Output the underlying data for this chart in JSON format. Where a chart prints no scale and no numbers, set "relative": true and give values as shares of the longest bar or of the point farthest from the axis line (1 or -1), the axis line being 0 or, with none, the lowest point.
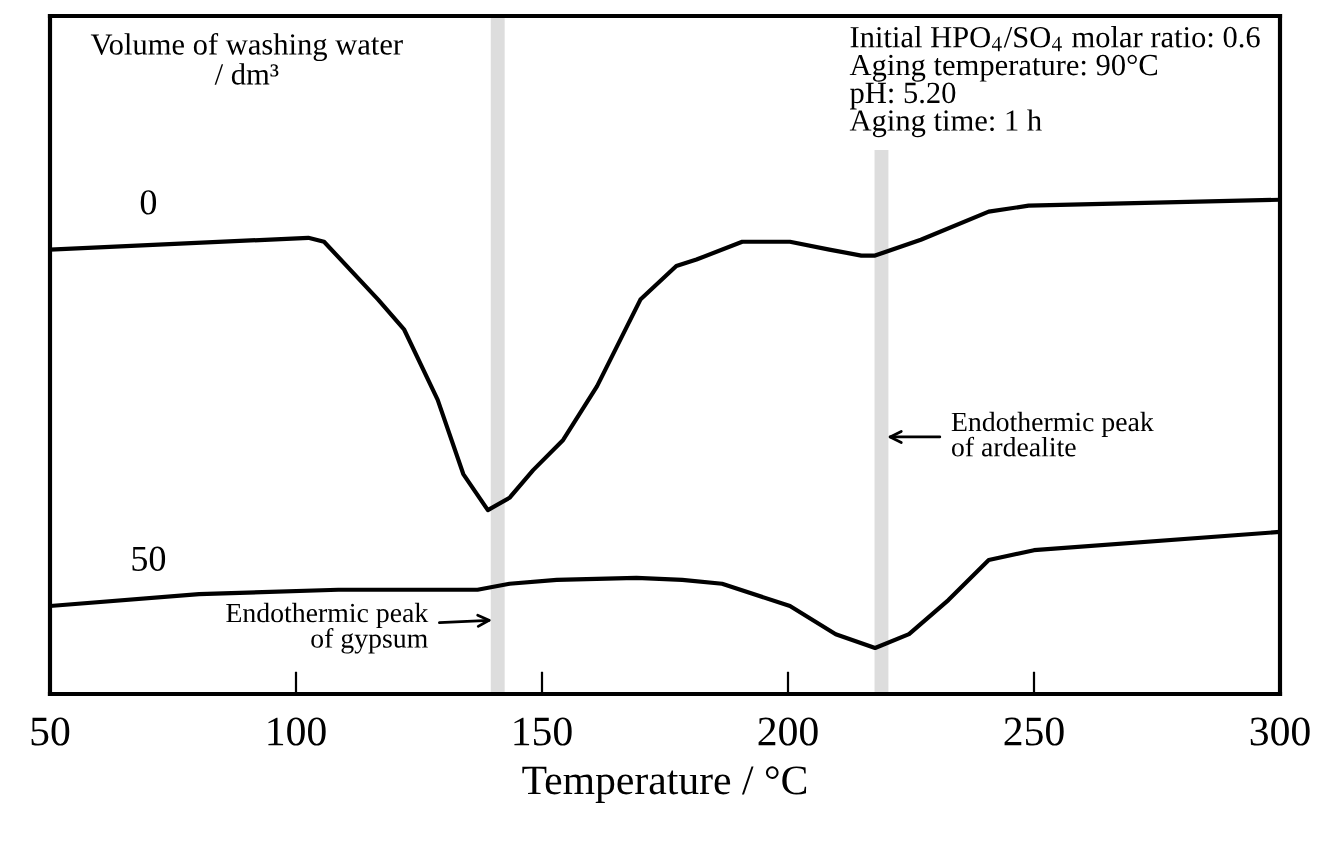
{
  "chart_data": {
    "type": "line",
    "relative": true,
    "xlabel": "Temperature / °C",
    "legend_title": "Volume of washing water\n/ dm³",
    "xlim": [
      50,
      300
    ],
    "xticks": [
      50,
      100,
      150,
      200,
      250,
      300
    ],
    "grid": false,
    "legend": false,
    "marker": "none",
    "line_style": "solid",
    "series": [
      {
        "name": "0",
        "color": "#000000",
        "x": [
          50,
          102.5,
          105.7,
          116.7,
          122,
          128.8,
          134,
          139,
          143.4,
          148.2,
          154.3,
          161.2,
          170,
          177.3,
          181.4,
          190.7,
          200.4,
          208.4,
          214.9,
          217.7,
          227,
          240.8,
          248.9,
          300
        ],
        "values": [
          0.899,
          0.923,
          0.915,
          0.798,
          0.737,
          0.595,
          0.445,
          0.372,
          0.397,
          0.453,
          0.514,
          0.623,
          0.798,
          0.866,
          0.879,
          0.915,
          0.915,
          0.899,
          0.887,
          0.887,
          0.919,
          0.976,
          0.988,
          1.0
        ]
      },
      {
        "name": "50",
        "color": "#000000",
        "x": [
          50,
          80.3,
          108.6,
          136.9,
          143.4,
          153,
          169.2,
          178.5,
          186.6,
          200.4,
          209.7,
          217.7,
          224.6,
          232.6,
          240.8,
          250,
          300
        ],
        "values": [
          0.178,
          0.202,
          0.211,
          0.211,
          0.223,
          0.231,
          0.235,
          0.231,
          0.223,
          0.178,
          0.121,
          0.093,
          0.121,
          0.19,
          0.271,
          0.291,
          0.328
        ]
      }
    ],
    "ref_lines": [
      {
        "axis": "x",
        "value": 141,
        "color": "#dddddd"
      },
      {
        "axis": "x",
        "value": 219,
        "color": "#dddddd"
      }
    ],
    "annotations": [
      "Initial HPO$_{4}$/SO$_{4}$ molar ratio: 0.6\nAging temperature: 90°C\npH: 5.20\nAging time: 1 h",
      {
        "text": "Endothermic peak\nof gypsum",
        "x": 141,
        "y": 0.15
      },
      {
        "text": "Endothermic peak\nof ardealite",
        "x": 219,
        "y": 0.52
      }
    ]
  }
}
